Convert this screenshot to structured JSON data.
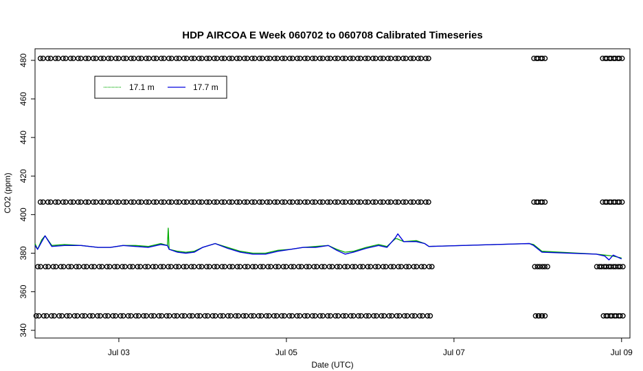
{
  "chart_data": {
    "type": "line",
    "title": "HDP AIRCOA E  Week 060702 to 060708  Calibrated Timeseries",
    "xlabel": "Date (UTC)",
    "ylabel": "CO2 (ppm)",
    "xlim": [
      2.0,
      9.1
    ],
    "ylim": [
      336,
      486
    ],
    "x_ticks": [
      {
        "value": 3,
        "label": "Jul 03"
      },
      {
        "value": 5,
        "label": "Jul 05"
      },
      {
        "value": 7,
        "label": "Jul 07"
      },
      {
        "value": 9,
        "label": "Jul 09"
      }
    ],
    "y_ticks": [
      340,
      360,
      380,
      400,
      420,
      440,
      460,
      480
    ],
    "legend": {
      "position": "top-left",
      "entries": [
        {
          "label": "17.1 m",
          "color": "#00aa00"
        },
        {
          "label": "17.7 m",
          "color": "#0000dd"
        }
      ]
    },
    "series": [
      {
        "name": "17.1 m",
        "color": "#00aa00",
        "x": [
          2.0,
          2.03,
          2.08,
          2.12,
          2.2,
          2.35,
          2.55,
          2.75,
          2.9,
          3.05,
          3.2,
          3.35,
          3.5,
          3.58,
          3.59,
          3.6,
          3.7,
          3.8,
          3.9,
          4.0,
          4.15,
          4.3,
          4.45,
          4.6,
          4.75,
          4.9,
          5.05,
          5.2,
          5.35,
          5.5,
          5.6,
          5.7,
          5.8,
          5.95,
          6.1,
          6.2,
          6.3,
          6.32,
          6.4,
          6.55,
          6.65,
          6.7,
          7.9,
          7.95,
          8.05,
          8.7,
          8.8,
          8.9,
          9.0
        ],
        "y": [
          385,
          382,
          387,
          389,
          384,
          384.5,
          384,
          383,
          383,
          384,
          384,
          383.5,
          385,
          384,
          393,
          382,
          381,
          380.5,
          381,
          383,
          385,
          383,
          381,
          380,
          380,
          381.5,
          382,
          383,
          383.5,
          384,
          382,
          380.5,
          381,
          383,
          384.5,
          383.5,
          387.5,
          387.5,
          386,
          386.5,
          385,
          383.5,
          385,
          384.5,
          381,
          379.5,
          379,
          378.5,
          377.5
        ]
      },
      {
        "name": "17.7 m",
        "color": "#0000dd",
        "x": [
          2.0,
          2.03,
          2.08,
          2.12,
          2.2,
          2.35,
          2.55,
          2.75,
          2.9,
          3.05,
          3.2,
          3.35,
          3.5,
          3.58,
          3.6,
          3.7,
          3.8,
          3.9,
          4.0,
          4.15,
          4.3,
          4.45,
          4.6,
          4.75,
          4.9,
          5.05,
          5.2,
          5.35,
          5.5,
          5.6,
          5.7,
          5.8,
          5.95,
          6.1,
          6.2,
          6.3,
          6.33,
          6.4,
          6.55,
          6.65,
          6.7,
          7.9,
          7.95,
          8.05,
          8.7,
          8.8,
          8.85,
          8.9,
          9.0
        ],
        "y": [
          384,
          382,
          386,
          389,
          383.5,
          384,
          384,
          383,
          383,
          384,
          383.5,
          383,
          384.5,
          384,
          382,
          380.5,
          380,
          380.5,
          383,
          385,
          382.5,
          380.5,
          379.5,
          379.5,
          381,
          382,
          383,
          383,
          384,
          381.5,
          379.5,
          380.5,
          382.5,
          384,
          383,
          388,
          390,
          386,
          386,
          385,
          383.5,
          385,
          384,
          380.5,
          379.5,
          378.5,
          376.5,
          379,
          377
        ]
      }
    ],
    "calibration_levels": [
      {
        "value": 481,
        "segments": [
          {
            "start": 2.08,
            "end": 6.68,
            "count": 52
          },
          {
            "start": 7.97,
            "end": 8.07,
            "count": 3
          },
          {
            "start": 8.79,
            "end": 8.99,
            "count": 5
          }
        ]
      },
      {
        "value": 406.5,
        "segments": [
          {
            "start": 2.08,
            "end": 6.68,
            "count": 52
          },
          {
            "start": 7.97,
            "end": 8.07,
            "count": 3
          },
          {
            "start": 8.79,
            "end": 8.99,
            "count": 5
          }
        ]
      },
      {
        "value": 373,
        "segments": [
          {
            "start": 2.05,
            "end": 6.72,
            "count": 52
          },
          {
            "start": 7.98,
            "end": 8.1,
            "count": 3
          },
          {
            "start": 8.72,
            "end": 9.0,
            "count": 6
          }
        ]
      },
      {
        "value": 347.5,
        "segments": [
          {
            "start": 2.03,
            "end": 6.7,
            "count": 52
          },
          {
            "start": 7.99,
            "end": 8.07,
            "count": 3
          },
          {
            "start": 8.8,
            "end": 9.0,
            "count": 5
          }
        ]
      }
    ]
  }
}
